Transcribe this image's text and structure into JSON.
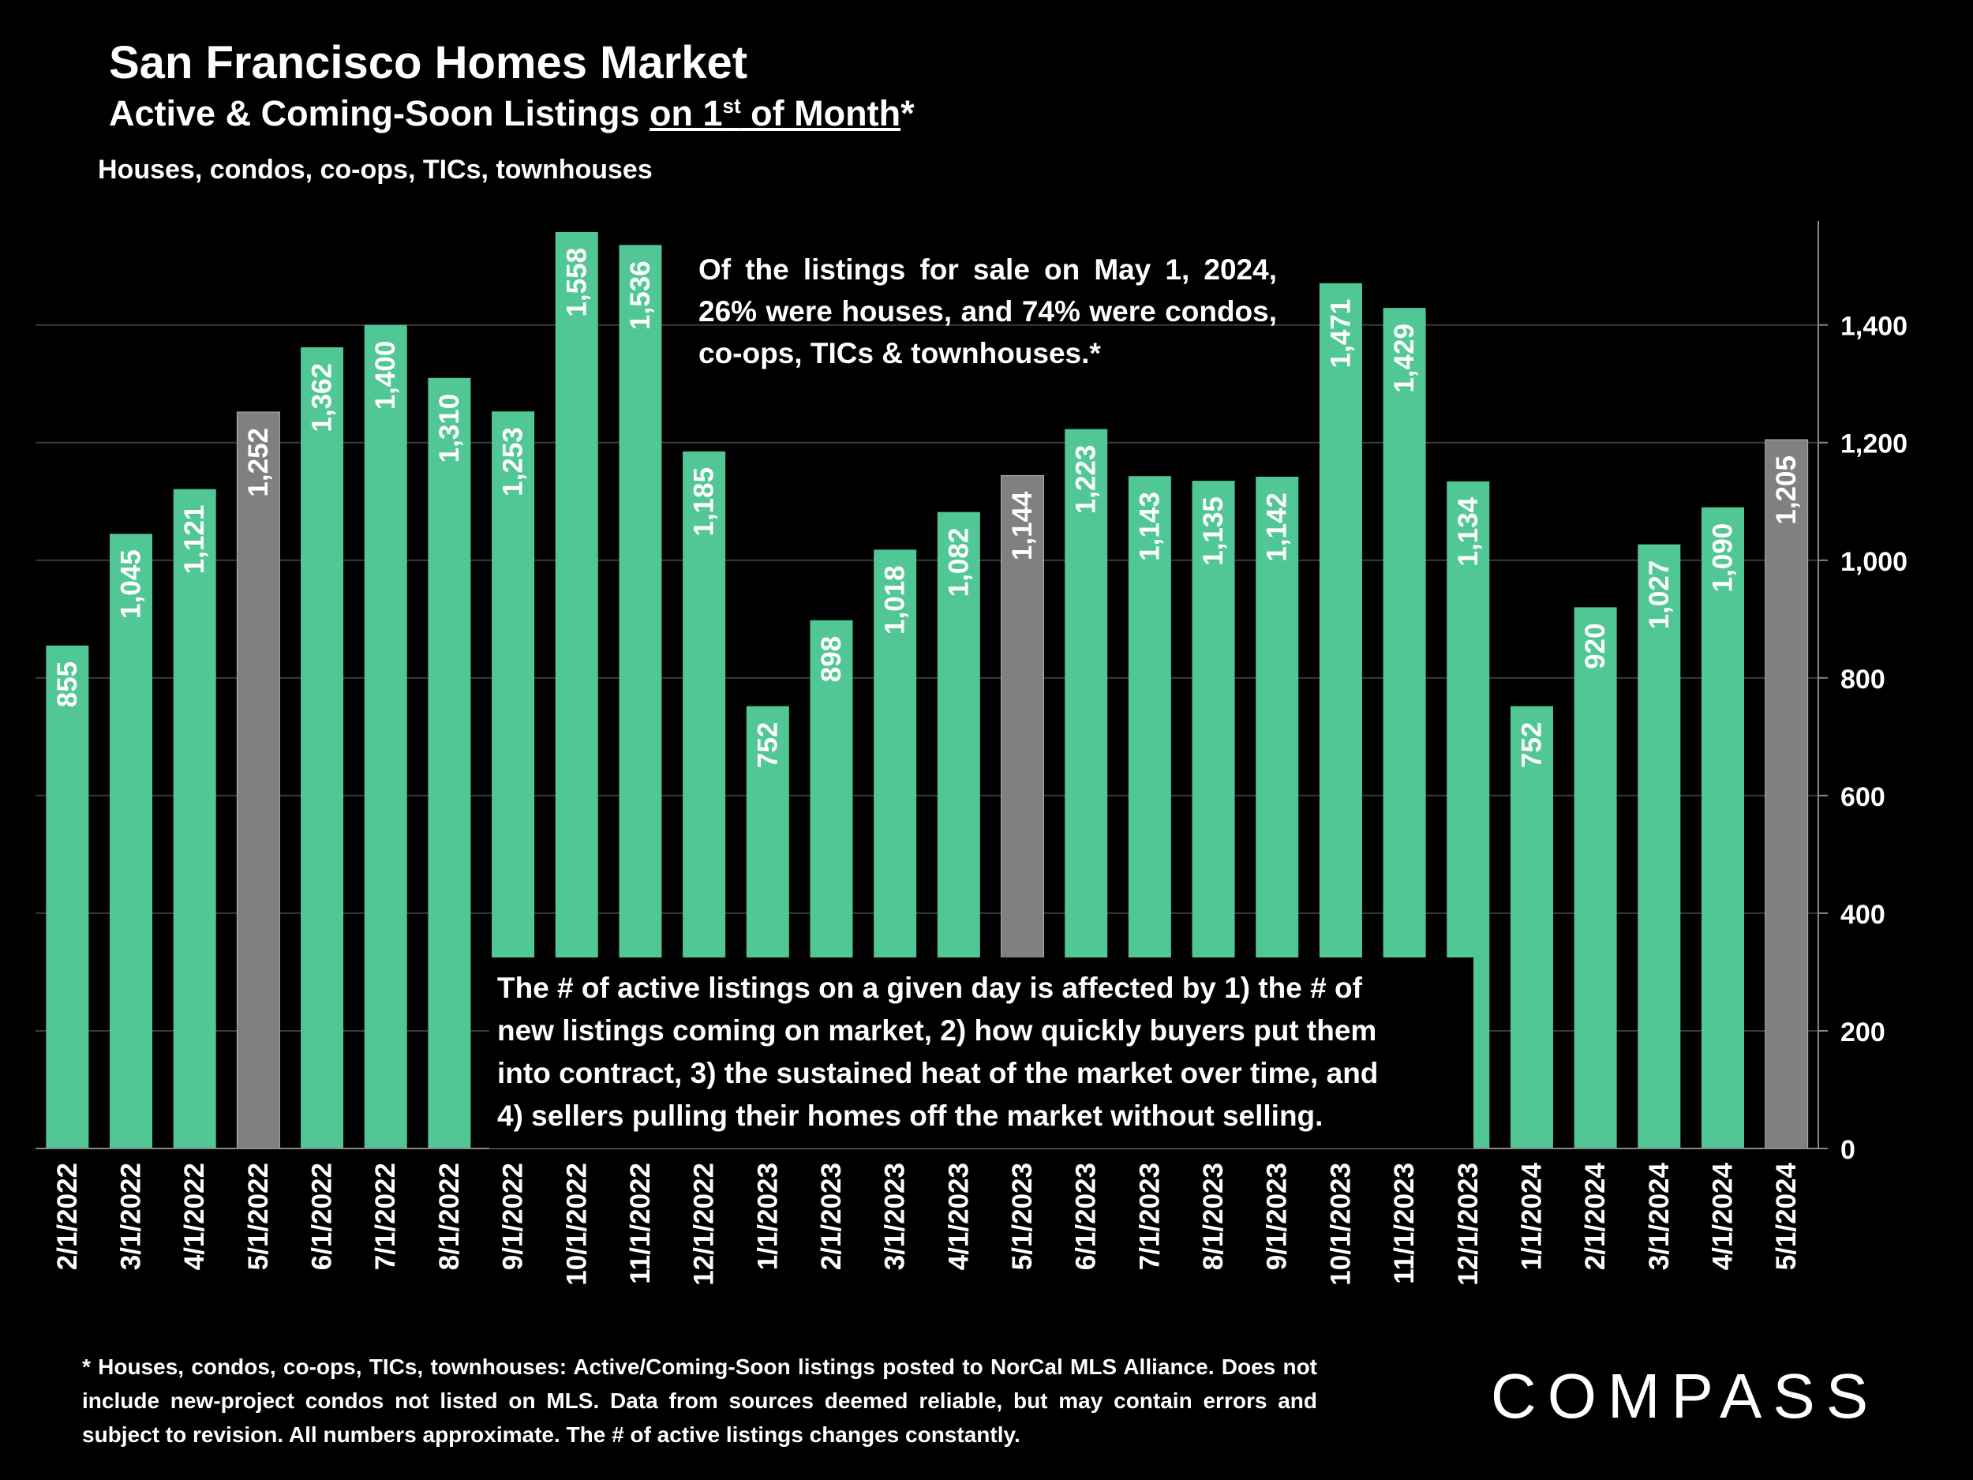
{
  "title": "San Francisco Homes Market",
  "subtitle_pre": "Active & Coming-Soon Listings ",
  "subtitle_underlined": "on 1",
  "subtitle_sup": "st",
  "subtitle_underlined2": " of Month",
  "subtitle_post": "*",
  "scope": "Houses, condos, co-ops, TICs, townhouses",
  "note_top": "Of the listings for sale on May 1, 2024, 26% were houses, and 74% were condos, co-ops, TICs & townhouses.*",
  "note_box": [
    "The # of active listings on a given day is affected by 1) the # of",
    "new listings coming on market, 2) how quickly buyers put them",
    "into contract, 3) the sustained heat of the market over time, and",
    "4) sellers pulling their homes off the market without selling."
  ],
  "footnote": "* Houses, condos, co-ops, TICs, townhouses: Active/Coming-Soon listings posted to NorCal MLS Alliance. Does not include new-project condos not listed on MLS. Data from sources deemed reliable, but may contain errors and subject to revision. All numbers approximate. The # of active listings changes constantly.",
  "logo_text": "COMPASS",
  "colors": {
    "bar": "#52c796",
    "highlight": "#808080",
    "background": "#000000",
    "grid": "#3a3a3a",
    "text": "#ffffff"
  },
  "chart_data": {
    "type": "bar",
    "categories": [
      "2/1/2022",
      "3/1/2022",
      "4/1/2022",
      "5/1/2022",
      "6/1/2022",
      "7/1/2022",
      "8/1/2022",
      "9/1/2022",
      "10/1/2022",
      "11/1/2022",
      "12/1/2022",
      "1/1/2023",
      "2/1/2023",
      "3/1/2023",
      "4/1/2023",
      "5/1/2023",
      "6/1/2023",
      "7/1/2023",
      "8/1/2023",
      "9/1/2023",
      "10/1/2023",
      "11/1/2023",
      "12/1/2023",
      "1/1/2024",
      "2/1/2024",
      "3/1/2024",
      "4/1/2024",
      "5/1/2024"
    ],
    "values": [
      855,
      1045,
      1121,
      1252,
      1362,
      1400,
      1310,
      1253,
      1558,
      1536,
      1185,
      752,
      898,
      1018,
      1082,
      1144,
      1223,
      1143,
      1135,
      1142,
      1471,
      1429,
      1134,
      752,
      920,
      1027,
      1090,
      1205
    ],
    "labels": [
      "855",
      "1,045",
      "1,121",
      "1,252",
      "1,362",
      "1,400",
      "1,310",
      "1,253",
      "1,558",
      "1,536",
      "1,185",
      "752",
      "898",
      "1,018",
      "1,082",
      "1,144",
      "1,223",
      "1,143",
      "1,135",
      "1,142",
      "1,471",
      "1,429",
      "1,134",
      "752",
      "920",
      "1,027",
      "1,090",
      "1,205"
    ],
    "highlighted": [
      "5/1/2022",
      "5/1/2023",
      "5/1/2024"
    ],
    "yticks": [
      0,
      200,
      400,
      600,
      800,
      1000,
      1200,
      1400
    ],
    "ytick_labels": [
      "0",
      "200",
      "400",
      "600",
      "800",
      "1,000",
      "1,200",
      "1,400"
    ],
    "ylim": [
      0,
      1570
    ],
    "y_axis_side": "right",
    "grid": true
  }
}
